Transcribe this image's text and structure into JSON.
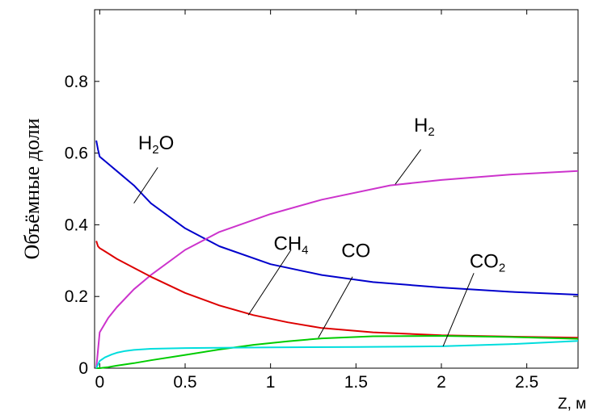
{
  "chart_data": {
    "type": "line",
    "xlabel": "Z, м",
    "ylabel": "Объёмные доли",
    "xlim": [
      -0.03,
      2.8
    ],
    "ylim": [
      0,
      1.0
    ],
    "x_ticks": [
      0,
      0.5,
      1,
      1.5,
      2,
      2.5
    ],
    "x_tick_labels": [
      "0",
      "0.5",
      "1",
      "1.5",
      "2",
      "2.5"
    ],
    "y_ticks": [
      0,
      0.2,
      0.4,
      0.6,
      0.8
    ],
    "y_tick_labels": [
      "0",
      "0.2",
      "0.4",
      "0.6",
      "0.8"
    ],
    "grid": false,
    "legend": "none",
    "series": [
      {
        "name": "H2O",
        "label_main": "H",
        "label_sub": "2",
        "label_tail": "O",
        "color": "#0000cc",
        "x": [
          -0.02,
          -0.01,
          0,
          0.05,
          0.1,
          0.2,
          0.3,
          0.5,
          0.7,
          1.0,
          1.3,
          1.6,
          2.0,
          2.4,
          2.8
        ],
        "y": [
          0.635,
          0.61,
          0.59,
          0.57,
          0.55,
          0.51,
          0.46,
          0.39,
          0.34,
          0.29,
          0.26,
          0.24,
          0.225,
          0.213,
          0.205
        ]
      },
      {
        "name": "H2",
        "label_main": "H",
        "label_sub": "2",
        "label_tail": "",
        "color": "#cc33cc",
        "x": [
          -0.02,
          -0.01,
          0,
          0.05,
          0.1,
          0.2,
          0.3,
          0.5,
          0.7,
          1.0,
          1.3,
          1.7,
          2.0,
          2.4,
          2.8
        ],
        "y": [
          0.0,
          0.05,
          0.1,
          0.14,
          0.17,
          0.22,
          0.26,
          0.33,
          0.38,
          0.43,
          0.47,
          0.51,
          0.525,
          0.54,
          0.55
        ]
      },
      {
        "name": "CH4",
        "label_main": "CH",
        "label_sub": "4",
        "label_tail": "",
        "color": "#dd0000",
        "x": [
          -0.02,
          -0.01,
          0,
          0.05,
          0.1,
          0.2,
          0.3,
          0.5,
          0.7,
          0.9,
          1.1,
          1.3,
          1.6,
          2.0,
          2.4,
          2.8
        ],
        "y": [
          0.355,
          0.34,
          0.335,
          0.32,
          0.305,
          0.28,
          0.255,
          0.21,
          0.175,
          0.148,
          0.128,
          0.112,
          0.1,
          0.092,
          0.088,
          0.085
        ]
      },
      {
        "name": "CO",
        "label_main": "CO",
        "label_sub": "",
        "label_tail": "",
        "color": "#00cc00",
        "x": [
          -0.02,
          0,
          0.05,
          0.1,
          0.2,
          0.3,
          0.5,
          0.7,
          0.9,
          1.1,
          1.3,
          1.6,
          2.0,
          2.4,
          2.8
        ],
        "y": [
          0.0,
          0.0,
          0.003,
          0.007,
          0.014,
          0.022,
          0.037,
          0.052,
          0.065,
          0.075,
          0.083,
          0.089,
          0.09,
          0.087,
          0.082
        ]
      },
      {
        "name": "CO2",
        "label_main": "CO",
        "label_sub": "2",
        "label_tail": "",
        "color": "#00dddd",
        "x": [
          -0.02,
          0,
          0.03,
          0.07,
          0.1,
          0.15,
          0.2,
          0.3,
          0.5,
          0.7,
          1.0,
          1.5,
          2.0,
          2.4,
          2.8
        ],
        "y": [
          0.0,
          0.02,
          0.03,
          0.038,
          0.043,
          0.048,
          0.051,
          0.054,
          0.056,
          0.057,
          0.058,
          0.059,
          0.061,
          0.067,
          0.076
        ]
      }
    ],
    "annotations": [
      {
        "series": "H2O",
        "text_x": 0.33,
        "text_y": 0.61,
        "line": [
          [
            0.34,
            0.56
          ],
          [
            0.2,
            0.46
          ]
        ]
      },
      {
        "series": "H2",
        "text_x": 1.9,
        "text_y": 0.66,
        "line": [
          [
            1.88,
            0.61
          ],
          [
            1.73,
            0.513
          ]
        ]
      },
      {
        "series": "CH4",
        "text_x": 1.12,
        "text_y": 0.33,
        "line": [
          [
            1.12,
            0.33
          ],
          [
            0.87,
            0.148
          ]
        ]
      },
      {
        "series": "CO",
        "text_x": 1.5,
        "text_y": 0.31,
        "line": [
          [
            1.48,
            0.255
          ],
          [
            1.28,
            0.085
          ]
        ]
      },
      {
        "series": "CO2",
        "text_x": 2.27,
        "text_y": 0.28,
        "line": [
          [
            2.19,
            0.265
          ],
          [
            2.01,
            0.061
          ]
        ]
      }
    ]
  }
}
